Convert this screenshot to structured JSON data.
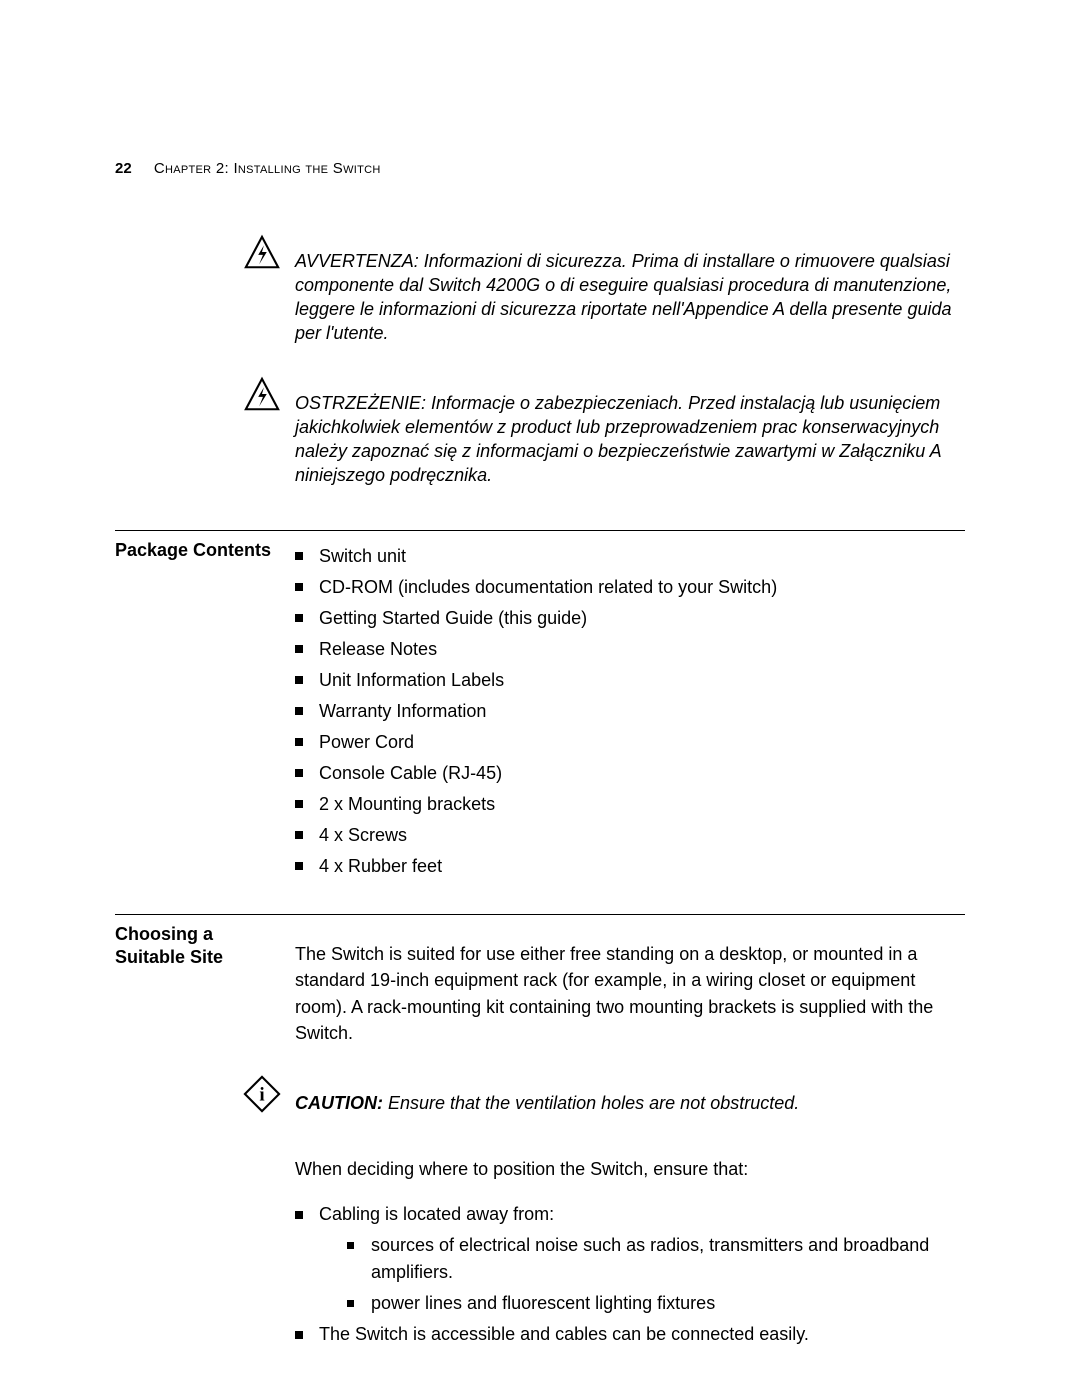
{
  "header": {
    "page_number": "22",
    "chapter_label": "Chapter 2: Installing the Switch"
  },
  "warnings": [
    {
      "lead": "AVVERTENZA: Informazioni di sicurezza",
      "body": ". Prima di installare o rimuovere qualsiasi componente dal Switch 4200G o di eseguire qualsiasi procedura di manutenzione, leggere le informazioni di sicurezza riportate nell'Appendice A della presente guida per l'utente."
    },
    {
      "lead": "OSTRZEŻENIE: Informacje o zabezpieczeniach",
      "body": ". Przed instalacją lub usunięciem jakichkolwiek elementów z product lub przeprowadzeniem prac konserwacyjnych należy zapoznać się z informacjami o bezpieczeństwie zawartymi w Załączniku A niniejszego podręcznika."
    }
  ],
  "sections": {
    "package_contents": {
      "title": "Package Contents",
      "items": [
        "Switch unit",
        "CD-ROM (includes documentation related to your Switch)",
        "Getting Started Guide (this guide)",
        "Release Notes",
        "Unit Information Labels",
        "Warranty Information",
        "Power Cord",
        "Console Cable (RJ-45)",
        "2 x Mounting brackets",
        "4 x Screws",
        "4 x Rubber feet"
      ]
    },
    "choosing_site": {
      "title": "Choosing a Suitable Site",
      "intro": "The Switch is suited for use either free standing on a desktop, or mounted in a standard 19-inch equipment rack (for example, in a wiring closet or equipment room). A rack-mounting kit containing two mounting brackets is supplied with the Switch.",
      "caution_lead": "CAUTION:",
      "caution_body": " Ensure that the ventilation holes are not obstructed.",
      "lead2": "When deciding where to position the Switch, ensure that:",
      "bullets": [
        {
          "text": "Cabling is located away from:",
          "sub": [
            "sources of electrical noise such as radios, transmitters and broadband amplifiers.",
            "power lines and fluorescent lighting fixtures"
          ]
        },
        {
          "text": "The Switch is accessible and cables can be connected easily."
        }
      ]
    }
  }
}
